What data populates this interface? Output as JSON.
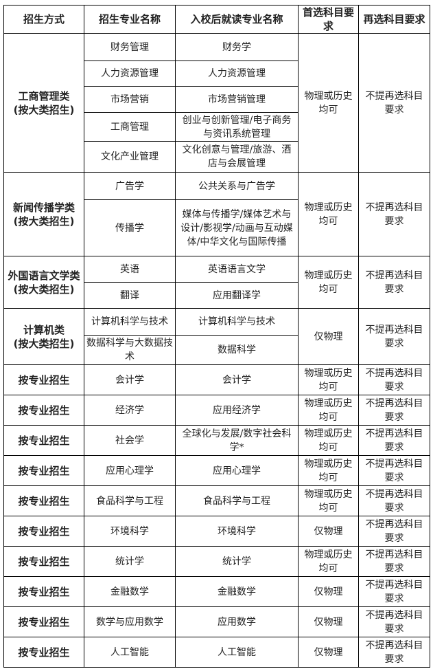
{
  "table": {
    "headers": [
      "招生方式",
      "招生专业名称",
      "入校后就读专业名称",
      "首选科目要求",
      "再选科目要求"
    ],
    "groups": [
      {
        "method": "工商管理类",
        "method_note": "(按大类招生)",
        "first": "物理或历史均可",
        "second": "不提再选科目要求",
        "majors": [
          [
            "财务管理",
            "财务学"
          ],
          [
            "人力资源管理",
            "人力资源管理"
          ],
          [
            "市场营销",
            "市场营销管理"
          ],
          [
            "工商管理",
            "创业与创新管理/电子商务与资讯系统管理"
          ],
          [
            "文化产业管理",
            "文化创意与管理/旅游、酒店与会展管理"
          ]
        ]
      },
      {
        "method": "新闻传播学类",
        "method_note": "(按大类招生)",
        "first": "物理或历史均可",
        "second": "不提再选科目要求",
        "majors": [
          [
            "广告学",
            "公共关系与广告学"
          ],
          [
            "传播学",
            "媒体与传播学/媒体艺术与设计/影视学/动画与互动媒体/中华文化与国际传播"
          ]
        ]
      },
      {
        "method": "外国语言文学类",
        "method_note": "(按大类招生)",
        "first": "物理或历史均可",
        "second": "不提再选科目要求",
        "majors": [
          [
            "英语",
            "英语语言文学"
          ],
          [
            "翻译",
            "应用翻译学"
          ]
        ]
      },
      {
        "method": "计算机类",
        "method_note": "(按大类招生)",
        "first": "仅物理",
        "second": "不提再选科目要求",
        "majors": [
          [
            "计算机科学与技术",
            "计算机科学与技术"
          ],
          [
            "数据科学与大数据技术",
            "数据科学"
          ]
        ]
      },
      {
        "method": "按专业招生",
        "first": "物理或历史均可",
        "second": "不提再选科目要求",
        "majors": [
          [
            "会计学",
            "会计学"
          ]
        ]
      },
      {
        "method": "按专业招生",
        "first": "物理或历史均可",
        "second": "不提再选科目要求",
        "majors": [
          [
            "经济学",
            "应用经济学"
          ]
        ]
      },
      {
        "method": "按专业招生",
        "first": "物理或历史均可",
        "second": "不提再选科目要求",
        "majors": [
          [
            "社会学",
            "全球化与发展/数字社会科学*"
          ]
        ]
      },
      {
        "method": "按专业招生",
        "first": "物理或历史均可",
        "second": "不提再选科目要求",
        "majors": [
          [
            "应用心理学",
            "应用心理学"
          ]
        ]
      },
      {
        "method": "按专业招生",
        "first": "物理或历史均可",
        "second": "不提再选科目要求",
        "majors": [
          [
            "食品科学与工程",
            "食品科学与工程"
          ]
        ]
      },
      {
        "method": "按专业招生",
        "first": "仅物理",
        "second": "不提再选科目要求",
        "majors": [
          [
            "环境科学",
            "环境科学"
          ]
        ]
      },
      {
        "method": "按专业招生",
        "first": "物理或历史均可",
        "second": "不提再选科目要求",
        "majors": [
          [
            "统计学",
            "统计学"
          ]
        ]
      },
      {
        "method": "按专业招生",
        "first": "仅物理",
        "second": "不提再选科目要求",
        "majors": [
          [
            "金融数学",
            "金融数学"
          ]
        ]
      },
      {
        "method": "按专业招生",
        "first": "仅物理",
        "second": "不提再选科目要求",
        "majors": [
          [
            "数学与应用数学",
            "应用数学"
          ]
        ]
      },
      {
        "method": "按专业招生",
        "first": "仅物理",
        "second": "不提再选科目要求",
        "majors": [
          [
            "人工智能",
            "人工智能"
          ]
        ]
      }
    ]
  }
}
